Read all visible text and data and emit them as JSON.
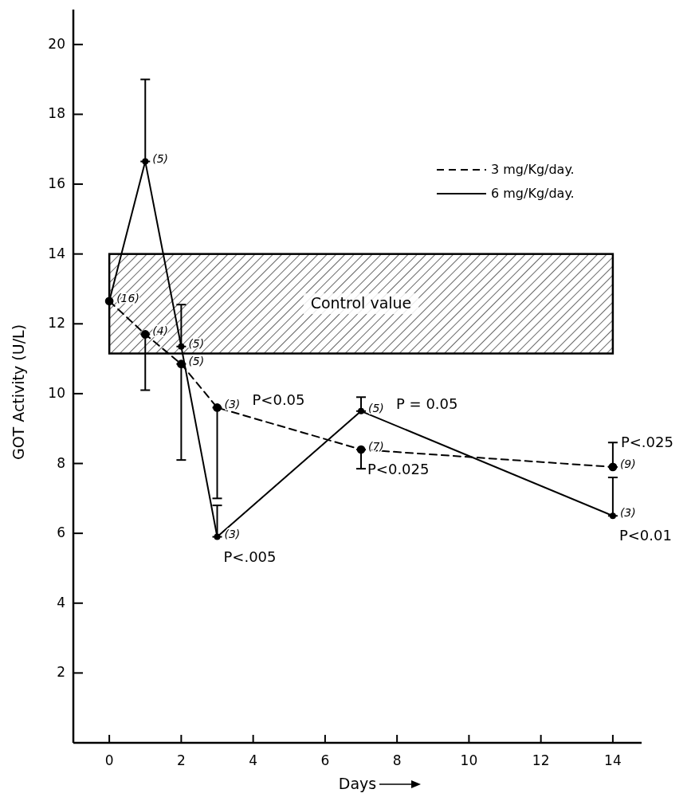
{
  "chart_data": {
    "type": "line",
    "xlabel": "Days",
    "ylabel": "GOT Activity (U/L)",
    "xlim": [
      -1,
      14.8
    ],
    "ylim": [
      0,
      21
    ],
    "xticks": [
      0,
      2,
      4,
      6,
      8,
      10,
      12,
      14
    ],
    "yticks": [
      2,
      4,
      6,
      8,
      10,
      12,
      14,
      16,
      18,
      20
    ],
    "grid": false,
    "legend": "top right",
    "marker": "circle",
    "series": [
      {
        "name": "3 mg/Kg/day.",
        "color": "#000000",
        "line_style": "dashed",
        "x": [
          0,
          1,
          2,
          3,
          7,
          14
        ],
        "values": [
          12.65,
          11.7,
          10.85,
          9.6,
          8.4,
          7.9
        ],
        "errors": [
          null,
          [
            10.1,
            11.7
          ],
          [
            8.1,
            10.85
          ],
          [
            7.0,
            9.6
          ],
          [
            7.85,
            8.4
          ],
          [
            7.9,
            8.6
          ]
        ]
      },
      {
        "name": "6 mg/Kg/day.",
        "color": "#000000",
        "line_style": "solid",
        "x": [
          0,
          1,
          2,
          3,
          7,
          14
        ],
        "values": [
          12.65,
          16.65,
          11.35,
          5.9,
          9.5,
          6.5
        ],
        "errors": [
          null,
          [
            16.65,
            19.0
          ],
          [
            11.35,
            12.55
          ],
          [
            5.9,
            6.8
          ],
          [
            9.5,
            9.9
          ],
          [
            6.5,
            7.6
          ]
        ]
      }
    ],
    "bands": [
      {
        "axis": "y",
        "from": 11.15,
        "to": 14.0,
        "label": "Control value",
        "color": "#000000"
      }
    ],
    "annotations": [
      {
        "text": "(16)",
        "x": 0,
        "y": 12.65
      },
      {
        "text": "(5)",
        "x": 1,
        "y": 16.65
      },
      {
        "text": "(4)",
        "x": 1,
        "y": 11.7
      },
      {
        "text": "(5)",
        "x": 2,
        "y": 11.35
      },
      {
        "text": "(5)",
        "x": 2,
        "y": 10.85
      },
      {
        "text": "(3)",
        "x": 3,
        "y": 9.6
      },
      {
        "text": "P<0.05",
        "x": 3,
        "y": 9.6
      },
      {
        "text": "(3)",
        "x": 3,
        "y": 5.9
      },
      {
        "text": "P<.005",
        "x": 3,
        "y": 5.9
      },
      {
        "text": "(5)",
        "x": 7,
        "y": 9.5
      },
      {
        "text": "P = 0.05",
        "x": 7,
        "y": 9.5
      },
      {
        "text": "(7)",
        "x": 7,
        "y": 8.4
      },
      {
        "text": "P<0.025",
        "x": 7,
        "y": 8.4
      },
      {
        "text": "(9)",
        "x": 14,
        "y": 7.9
      },
      {
        "text": "P<.025",
        "x": 14,
        "y": 7.9
      },
      {
        "text": "(3)",
        "x": 14,
        "y": 6.5
      },
      {
        "text": "P<0.01",
        "x": 14,
        "y": 6.5
      }
    ]
  }
}
